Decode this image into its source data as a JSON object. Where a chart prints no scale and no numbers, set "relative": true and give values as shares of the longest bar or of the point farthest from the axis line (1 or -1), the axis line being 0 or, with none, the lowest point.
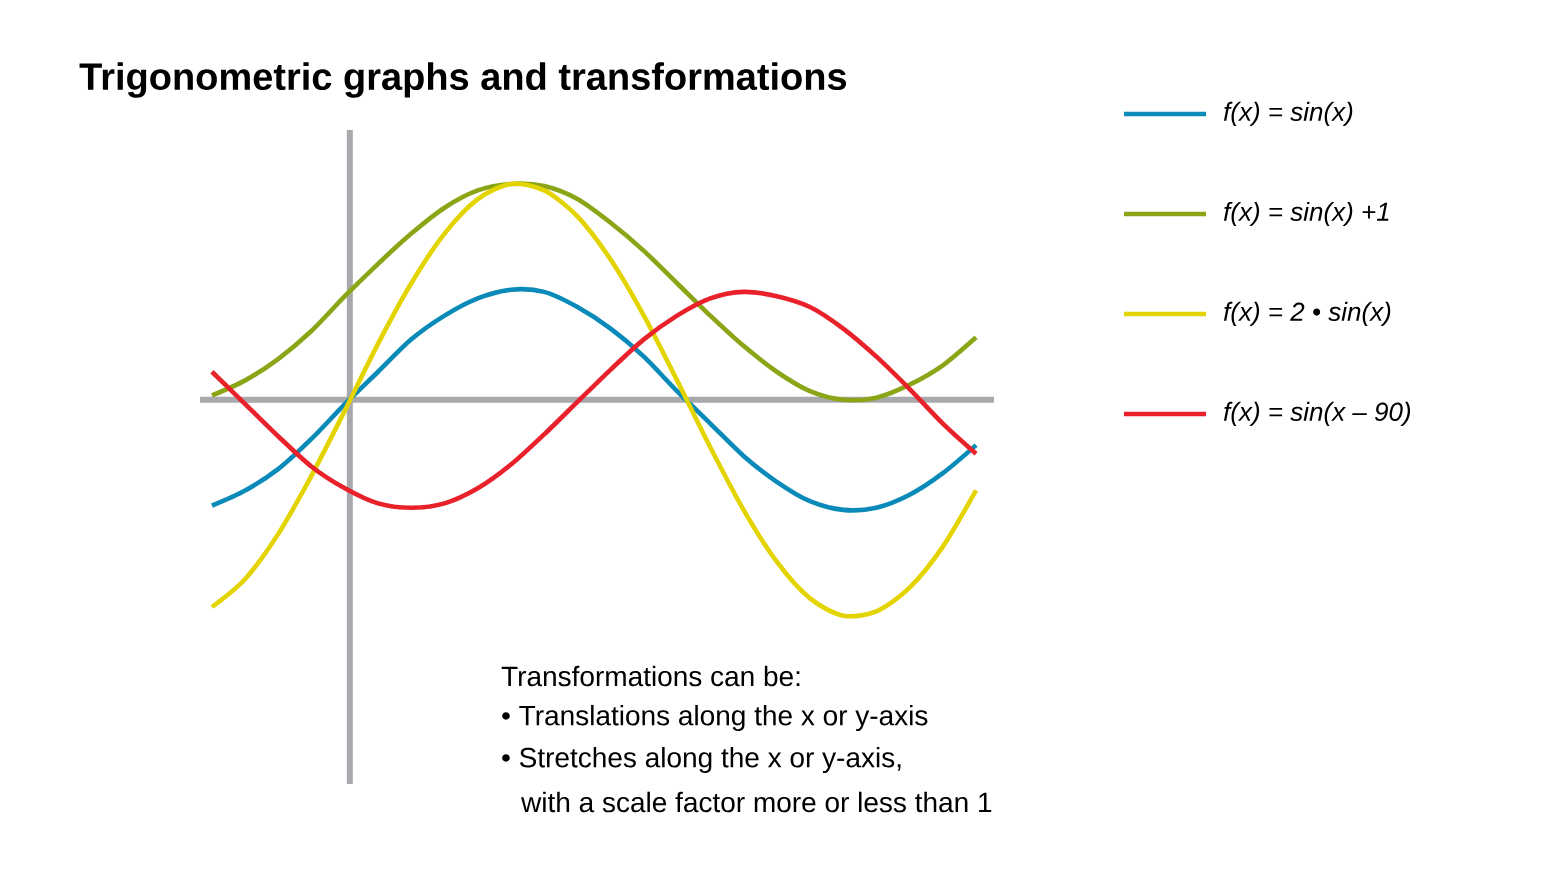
{
  "chart_data": {
    "type": "line",
    "title": "Trigonometric graphs and transformations",
    "relative": true,
    "legend": "right",
    "categories": [
      null,
      null,
      null,
      null,
      null,
      null,
      null,
      null,
      null,
      null,
      null,
      null,
      null,
      null,
      null,
      null,
      null,
      null,
      null,
      null,
      null,
      null,
      null,
      null
    ],
    "series": [
      {
        "name": "f(x) = sin(x)",
        "color": "#0a8ab8",
        "values": [
          -0.49,
          -0.42,
          -0.32,
          -0.18,
          -0.02,
          0.13,
          0.28,
          0.39,
          0.47,
          0.51,
          0.5,
          0.43,
          0.33,
          0.2,
          0.04,
          -0.11,
          -0.26,
          -0.38,
          -0.47,
          -0.51,
          -0.5,
          -0.44,
          -0.34,
          -0.21
        ]
      },
      {
        "name": "f(x) = sin(x) +1",
        "color": "#8aa515",
        "values": [
          0.02,
          0.09,
          0.19,
          0.32,
          0.48,
          0.63,
          0.77,
          0.89,
          0.97,
          1,
          0.99,
          0.93,
          0.82,
          0.69,
          0.54,
          0.39,
          0.25,
          0.13,
          0.04,
          0,
          0.01,
          0.07,
          0.16,
          0.29
        ]
      },
      {
        "name": "f(x) = 2 • sin(x)",
        "color": "#e3d400",
        "values": [
          -0.96,
          -0.83,
          -0.62,
          -0.35,
          -0.05,
          0.26,
          0.54,
          0.77,
          0.93,
          1,
          0.97,
          0.85,
          0.65,
          0.39,
          0.09,
          -0.22,
          -0.51,
          -0.75,
          -0.92,
          -1,
          -0.98,
          -0.87,
          -0.68,
          -0.42
        ]
      },
      {
        "name": "f(x) = sin(x – 90)",
        "color": "#e8212b",
        "values": [
          0.13,
          -0.02,
          -0.17,
          -0.31,
          -0.41,
          -0.48,
          -0.5,
          -0.48,
          -0.41,
          -0.3,
          -0.16,
          -0.01,
          0.14,
          0.28,
          0.39,
          0.47,
          0.5,
          0.48,
          0.43,
          0.33,
          0.2,
          0.05,
          -0.11,
          -0.25
        ]
      }
    ],
    "annotations": [
      "Transformations can be:",
      "• Translations along the x or y-axis",
      "• Stretches along the x or y-axis,",
      "with a scale factor more or less than 1"
    ]
  }
}
